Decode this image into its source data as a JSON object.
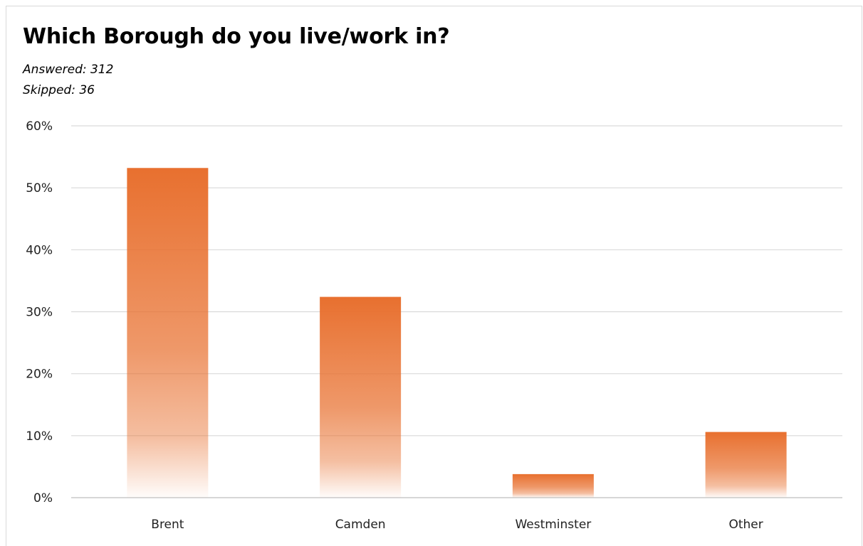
{
  "title": "Which Borough do you live/work in?",
  "answered": "Answered: 312",
  "skipped": "Skipped: 36",
  "colors": {
    "bar_top": "#e8702f",
    "gridline": "#d9d9d9",
    "axis": "#bfbfbf"
  },
  "chart_data": {
    "type": "bar",
    "categories": [
      "Brent",
      "Camden",
      "Westminster",
      "Other"
    ],
    "values": [
      53.2,
      32.4,
      3.8,
      10.6
    ],
    "ylim": [
      0,
      60
    ],
    "yticks": [
      "0%",
      "10%",
      "20%",
      "30%",
      "40%",
      "50%",
      "60%"
    ],
    "title": "Which Borough do you live/work in?",
    "xlabel": "",
    "ylabel": "",
    "grid": true,
    "legend": "none"
  }
}
